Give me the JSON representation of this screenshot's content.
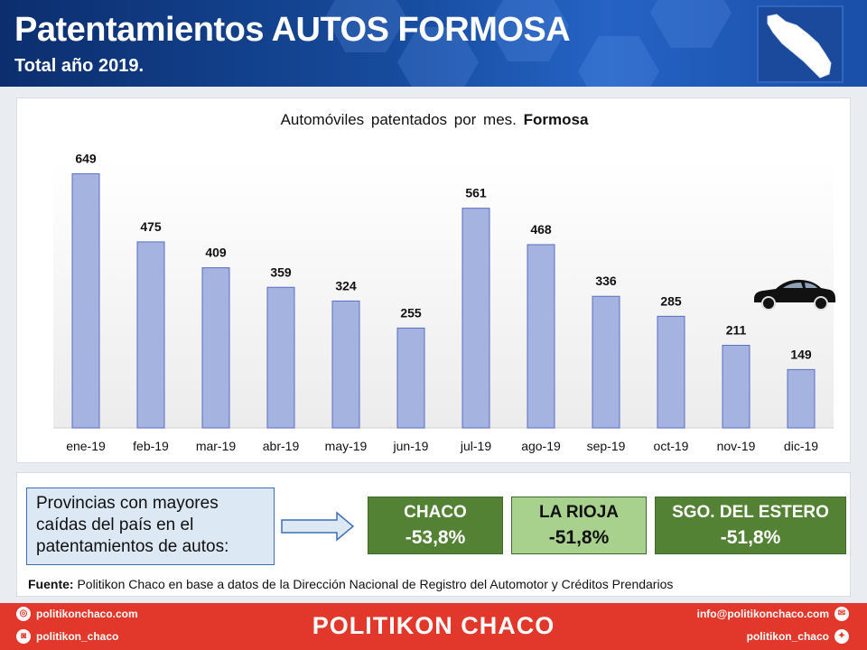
{
  "header": {
    "title": "Patentamientos AUTOS FORMOSA",
    "subtitle": "Total año 2019."
  },
  "chart_title_prefix": "Automóviles  patentados  por mes.",
  "chart_title_bold": "Formosa",
  "chart_data": {
    "type": "bar",
    "title": "Automóviles patentados por mes. Formosa",
    "categories": [
      "ene-19",
      "feb-19",
      "mar-19",
      "abr-19",
      "may-19",
      "jun-19",
      "jul-19",
      "ago-19",
      "sep-19",
      "oct-19",
      "nov-19",
      "dic-19"
    ],
    "values": [
      649,
      475,
      409,
      359,
      324,
      255,
      561,
      468,
      336,
      285,
      211,
      149
    ],
    "xlabel": "",
    "ylabel": "",
    "ylim": [
      0,
      680
    ],
    "grid": false,
    "bar_color": "#a4b3e0"
  },
  "note": "Provincias con mayores caídas del país en el patentamientos  de autos:",
  "provinces": [
    {
      "name": "CHACO",
      "value": "-53,8%"
    },
    {
      "name": "LA RIOJA",
      "value": "-51,8%"
    },
    {
      "name": "SGO. DEL ESTERO",
      "value": "-51,8%"
    }
  ],
  "source": {
    "label": "Fuente:",
    "text": " Politikon Chaco en base a datos de la Dirección Nacional de Registro del Automotor  y Créditos Prendarios"
  },
  "footer": {
    "brand": "POLITIKON CHACO",
    "web": "politikonchaco.com",
    "instagram": "politikon_chaco",
    "email": "info@politikonchaco.com",
    "twitter": "politikon_chaco"
  },
  "colors": {
    "header_blue": "#164b9c",
    "province_dark": "#548235",
    "province_light": "#a9d18e",
    "footer_red": "#e2382c"
  }
}
